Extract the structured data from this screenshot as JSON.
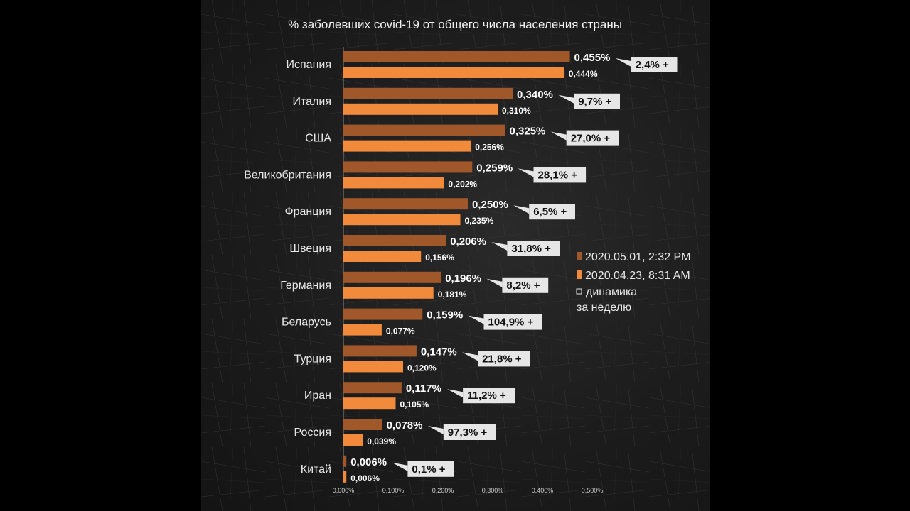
{
  "chart_data": {
    "type": "bar",
    "title": "% заболевших covid-19 от общего числа населения страны",
    "categories": [
      "Испания",
      "Италия",
      "США",
      "Великобритания",
      "Франция",
      "Швеция",
      "Германия",
      "Беларусь",
      "Турция",
      "Иран",
      "Россия",
      "Китай"
    ],
    "series": [
      {
        "name": "2020.05.01, 2:32 PM",
        "color": "#a0582a",
        "values": [
          0.455,
          0.34,
          0.325,
          0.259,
          0.25,
          0.206,
          0.196,
          0.159,
          0.147,
          0.117,
          0.078,
          0.006
        ],
        "labels": [
          "0,455%",
          "0,340%",
          "0,325%",
          "0,259%",
          "0,250%",
          "0,206%",
          "0,196%",
          "0,159%",
          "0,147%",
          "0,117%",
          "0,078%",
          "0,006%"
        ]
      },
      {
        "name": "2020.04.23, 8:31 AM",
        "color": "#f28a3c",
        "values": [
          0.444,
          0.31,
          0.256,
          0.202,
          0.235,
          0.156,
          0.181,
          0.077,
          0.12,
          0.105,
          0.039,
          0.006
        ],
        "labels": [
          "0,444%",
          "0,310%",
          "0,256%",
          "0,202%",
          "0,235%",
          "0,156%",
          "0,181%",
          "0,077%",
          "0,120%",
          "0,105%",
          "0,039%",
          "0,006%"
        ]
      }
    ],
    "dynamics": {
      "name": "динамика за неделю",
      "labels": [
        "2,4% +",
        "9,7% +",
        "27,0% +",
        "28,1% +",
        "6,5% +",
        "31,8% +",
        "8,2% +",
        "104,9% +",
        "21,8% +",
        "11,2% +",
        "97,3% +",
        "0,1% +"
      ]
    },
    "x_ticks": [
      0,
      0.1,
      0.2,
      0.3,
      0.4,
      0.5
    ],
    "x_tick_labels": [
      "0,000%",
      "0,100%",
      "0,200%",
      "0,300%",
      "0,400%",
      "0,500%"
    ],
    "xlim": [
      0,
      0.5
    ],
    "grid": false,
    "legend": {
      "placement": "right",
      "items": [
        "2020.05.01, 2:32 PM",
        "2020.04.23, 8:31 AM",
        "динамика",
        "за неделю"
      ]
    }
  }
}
